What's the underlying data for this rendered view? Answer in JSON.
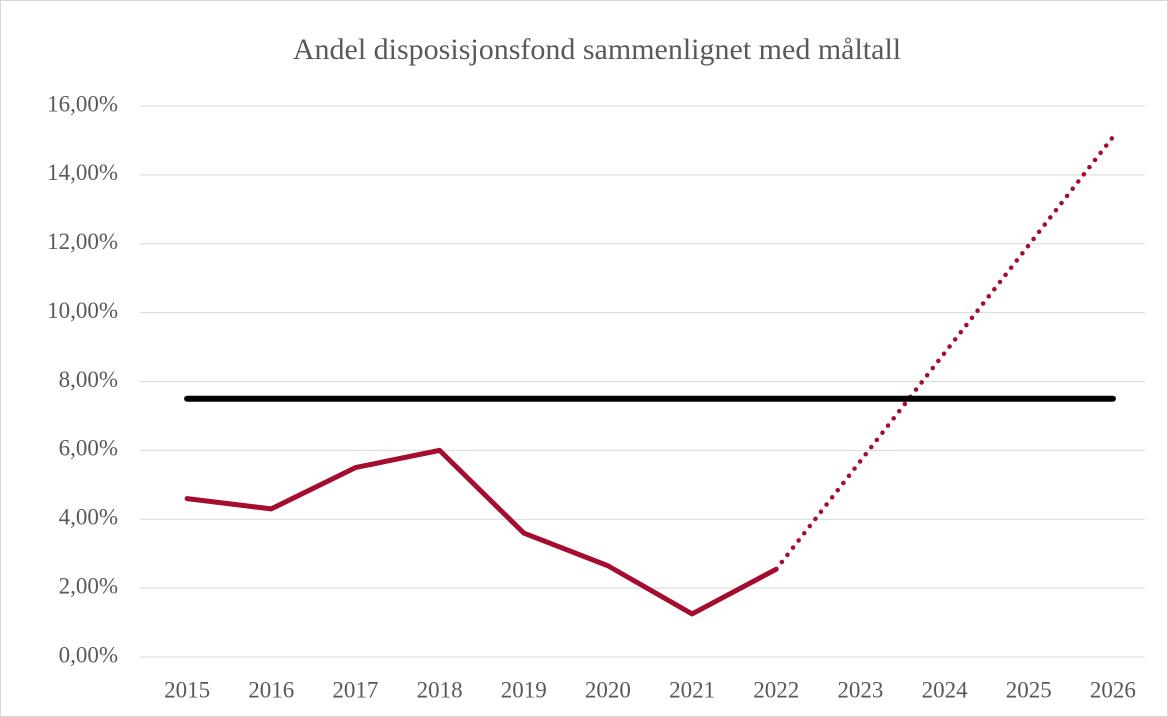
{
  "chart_data": {
    "type": "line",
    "title": "Andel disposisjonsfond sammenlignet med måltall",
    "categories": [
      "2015",
      "2016",
      "2017",
      "2018",
      "2019",
      "2020",
      "2021",
      "2022",
      "2023",
      "2024",
      "2025",
      "2026"
    ],
    "series": [
      {
        "color": "#a50d2e",
        "style": "solid",
        "values": [
          4.6,
          4.3,
          5.5,
          6.0,
          3.6,
          2.65,
          1.25,
          2.55,
          null,
          null,
          null,
          null
        ]
      },
      {
        "color": "#a50d2e",
        "style": "dotted",
        "values": [
          null,
          null,
          null,
          null,
          null,
          null,
          null,
          2.55,
          5.69,
          8.83,
          11.96,
          15.1
        ]
      },
      {
        "color": "#000000",
        "style": "solid",
        "values": [
          7.5,
          7.5,
          7.5,
          7.5,
          7.5,
          7.5,
          7.5,
          7.5,
          7.5,
          7.5,
          7.5,
          7.5
        ]
      }
    ],
    "ylim": [
      0,
      16
    ],
    "yticks": [
      {
        "value": 0,
        "label": "0,00%"
      },
      {
        "value": 2,
        "label": "2,00%"
      },
      {
        "value": 4,
        "label": "4,00%"
      },
      {
        "value": 6,
        "label": "6,00%"
      },
      {
        "value": 8,
        "label": "8,00%"
      },
      {
        "value": 10,
        "label": "10,00%"
      },
      {
        "value": 12,
        "label": "12,00%"
      },
      {
        "value": 14,
        "label": "14,00%"
      },
      {
        "value": 16,
        "label": "16,00%"
      }
    ],
    "grid": true
  }
}
